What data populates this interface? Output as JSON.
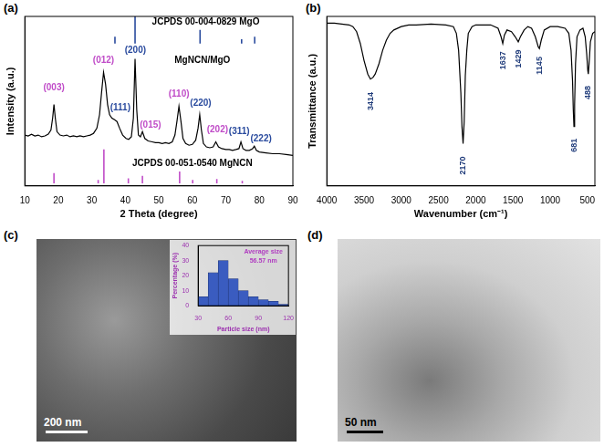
{
  "chart_data": [
    {
      "type": "line",
      "panel_label": "(a)",
      "xlabel": "2 Theta (degree)",
      "ylabel": "Intensity (a.u.)",
      "xlim": [
        10,
        90
      ],
      "xticks": [
        10,
        20,
        30,
        40,
        50,
        60,
        70,
        80,
        90
      ],
      "ylim": [
        0,
        100
      ],
      "grid": false,
      "tick_labels": "x",
      "series": [
        {
          "type": "stick",
          "color": "#2a4b9e",
          "baseline": 84,
          "x": [
            36.9,
            42.9,
            62.3,
            74.7,
            78.6
          ],
          "values": [
            4,
            16,
            8,
            2.5,
            4
          ]
        },
        {
          "type": "line",
          "color": "#000000",
          "x": [
            10,
            11,
            12,
            13,
            14,
            15,
            16,
            17,
            17.8,
            18.3,
            18.7,
            19.1,
            19.6,
            20.5,
            21.5,
            22.5,
            23.5,
            24.5,
            25.5,
            26.5,
            27.5,
            28.5,
            29.5,
            30.5,
            31.5,
            32.3,
            32.9,
            33.5,
            34.1,
            34.7,
            35.3,
            36,
            36.8,
            37.5,
            38.3,
            39.2,
            40.2,
            41,
            41.8,
            42.4,
            42.9,
            43.4,
            43.9,
            44.5,
            45.1,
            45.8,
            46.8,
            48,
            49,
            50,
            51,
            52,
            53,
            54,
            54.8,
            55.4,
            56,
            56.6,
            57.2,
            58,
            59,
            60,
            61,
            61.7,
            62.2,
            62.7,
            63.3,
            64.2,
            65.2,
            66.2,
            67,
            67.8,
            68.8,
            70,
            71,
            72,
            73,
            73.9,
            74.5,
            75.1,
            76,
            77,
            78,
            78.5,
            79.1,
            80,
            82,
            84,
            86,
            88,
            90
          ],
          "values": [
            30,
            29.5,
            30.5,
            29.5,
            30,
            29,
            29.5,
            30.5,
            33,
            40,
            48,
            40,
            32,
            30,
            29.5,
            30,
            29,
            29.5,
            29,
            29.5,
            29,
            29.5,
            30,
            31,
            34,
            42,
            55,
            67,
            60,
            48,
            42,
            40,
            39,
            38,
            34,
            30,
            28,
            27.5,
            29,
            40,
            75,
            45,
            30,
            29,
            32,
            28,
            26.5,
            26,
            25.5,
            25.5,
            25,
            25.5,
            25,
            26,
            30,
            38,
            47,
            38,
            28,
            25,
            24,
            24.5,
            27,
            34,
            42,
            33,
            25,
            23,
            22.5,
            23,
            26,
            23,
            22,
            21.5,
            21.5,
            21,
            21.5,
            22,
            26,
            22,
            21,
            21,
            22,
            23.5,
            21,
            20,
            19.5,
            19,
            19,
            18.5,
            18
          ]
        },
        {
          "type": "stick",
          "color": "#c04cc8",
          "baseline": 1.5,
          "x": [
            18.7,
            31.9,
            33.6,
            40.9,
            45.1,
            56.2,
            60.1,
            67.3,
            74.9
          ],
          "values": [
            6,
            2,
            20,
            3,
            4.5,
            7,
            2,
            2.5,
            1.5
          ]
        }
      ],
      "annotations": [
        {
          "text": "JCPDS 00-004-0829 MgO",
          "x": 64,
          "y": 96.5,
          "color": "#000000"
        },
        {
          "text": "MgNCN/MgO",
          "x": 63,
          "y": 74,
          "color": "#000000"
        },
        {
          "text": "JCPDS 00-051-0540 MgNCN",
          "x": 60,
          "y": 13,
          "color": "#000000"
        },
        {
          "text": "(003)",
          "x": 18.7,
          "y": 58,
          "color": "#c04cc8"
        },
        {
          "text": "(012)",
          "x": 33.5,
          "y": 74,
          "color": "#c04cc8"
        },
        {
          "text": "(111)",
          "x": 38.5,
          "y": 46,
          "color": "#2a4b9e"
        },
        {
          "text": "(200)",
          "x": 43,
          "y": 80,
          "color": "#2a4b9e"
        },
        {
          "text": "(015)",
          "x": 47.5,
          "y": 36,
          "color": "#c04cc8"
        },
        {
          "text": "(110)",
          "x": 56,
          "y": 54,
          "color": "#c04cc8"
        },
        {
          "text": "(220)",
          "x": 62.5,
          "y": 49,
          "color": "#2a4b9e"
        },
        {
          "text": "(202)",
          "x": 67.5,
          "y": 33,
          "color": "#c04cc8"
        },
        {
          "text": "(311)",
          "x": 74,
          "y": 32,
          "color": "#2a4b9e"
        },
        {
          "text": "(222)",
          "x": 80.5,
          "y": 28,
          "color": "#2a4b9e"
        }
      ]
    },
    {
      "type": "line",
      "panel_label": "(b)",
      "xlabel": "Wavenumber (cm⁻¹)",
      "ylabel": "Transmittance (a.u.)",
      "xlim": [
        4000,
        400
      ],
      "xticks": [
        4000,
        3500,
        3000,
        2500,
        2000,
        1500,
        1000,
        500
      ],
      "ylim": [
        0,
        100
      ],
      "grid": false,
      "tick_labels": "x",
      "series": [
        {
          "type": "line",
          "color": "#000000",
          "x": [
            4000,
            3900,
            3800,
            3700,
            3650,
            3600,
            3550,
            3500,
            3450,
            3414,
            3380,
            3350,
            3300,
            3250,
            3200,
            3150,
            3100,
            3000,
            2900,
            2800,
            2600,
            2400,
            2300,
            2260,
            2230,
            2200,
            2185,
            2170,
            2155,
            2140,
            2120,
            2100,
            2050,
            2000,
            1900,
            1800,
            1700,
            1660,
            1637,
            1615,
            1580,
            1520,
            1470,
            1429,
            1400,
            1350,
            1300,
            1250,
            1200,
            1160,
            1145,
            1120,
            1080,
            1000,
            900,
            800,
            750,
            720,
            700,
            690,
            681,
            672,
            660,
            640,
            600,
            560,
            530,
            510,
            495,
            488,
            478,
            460,
            430,
            400
          ],
          "values": [
            96,
            96,
            95.5,
            95,
            94,
            91,
            84,
            74,
            66,
            63,
            64,
            66,
            72,
            80,
            86,
            90,
            92,
            94,
            95,
            95,
            95.5,
            95,
            94,
            90,
            80,
            55,
            35,
            25,
            38,
            65,
            80,
            90,
            94,
            95,
            95,
            95,
            93,
            88,
            84,
            89,
            92,
            91,
            88,
            85,
            88,
            92,
            94,
            93,
            88,
            82,
            81,
            86,
            92,
            94,
            94,
            93,
            90,
            80,
            62,
            45,
            35,
            48,
            72,
            88,
            92,
            93,
            88,
            78,
            68,
            66,
            72,
            85,
            90,
            91
          ]
        }
      ],
      "annotations": [
        {
          "text": "3414",
          "x": 3414,
          "y": 50,
          "color": "#1f3b7a"
        },
        {
          "text": "2170",
          "x": 2170,
          "y": 12,
          "color": "#1f3b7a"
        },
        {
          "text": "1637",
          "x": 1637,
          "y": 74,
          "color": "#1f3b7a"
        },
        {
          "text": "1429",
          "x": 1429,
          "y": 75,
          "color": "#1f3b7a"
        },
        {
          "text": "1145",
          "x": 1145,
          "y": 71,
          "color": "#1f3b7a"
        },
        {
          "text": "681",
          "x": 681,
          "y": 24,
          "color": "#1f3b7a"
        },
        {
          "text": "488",
          "x": 488,
          "y": 55,
          "color": "#1f3b7a"
        }
      ]
    },
    {
      "type": "histogram",
      "xlabel": "Particle size (nm)",
      "ylabel": "Percentage (%)",
      "bins": [
        30,
        40,
        50,
        60,
        70,
        80,
        90,
        100,
        110,
        120
      ],
      "values": [
        6,
        22,
        30,
        18,
        10,
        6,
        4,
        3,
        1
      ],
      "color": "#3a5cc0",
      "xlim": [
        30,
        120
      ],
      "xticks": [
        30,
        60,
        90,
        120
      ],
      "ylim": [
        0,
        40
      ],
      "yticks": [
        0,
        10,
        20,
        30,
        40
      ],
      "grid": false,
      "annotations": [
        {
          "text": "Average size",
          "x": 95,
          "y": 36,
          "color": "#b03cc0"
        },
        {
          "text": "56.57 nm",
          "x": 95,
          "y": 30,
          "color": "#b03cc0"
        }
      ]
    }
  ],
  "images": [
    {
      "panel_label": "(c)",
      "scale_bar": "200 nm"
    },
    {
      "panel_label": "(d)",
      "scale_bar": "50 nm"
    }
  ]
}
